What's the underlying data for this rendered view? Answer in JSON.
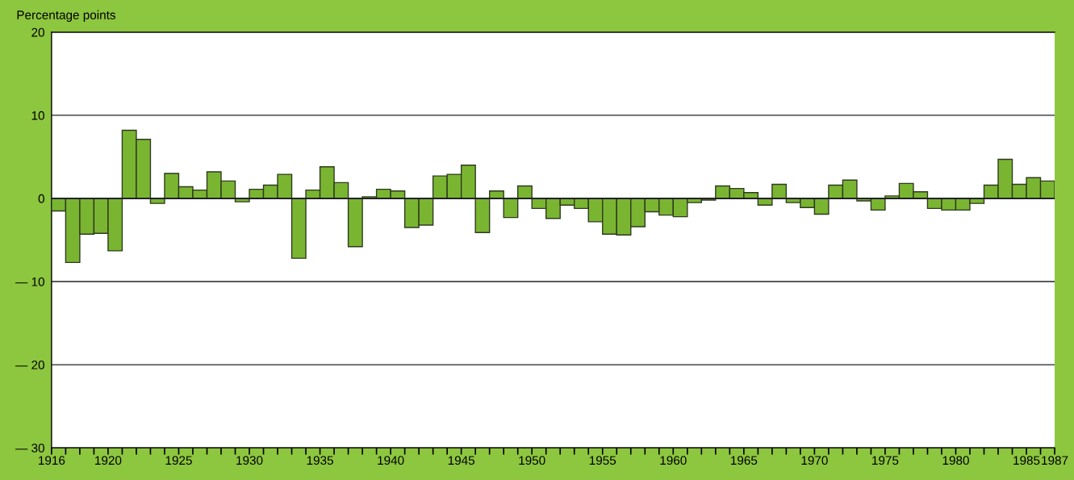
{
  "chart_data": {
    "type": "bar",
    "ylabel": "Percentage points",
    "x": [
      1916.5,
      1917.5,
      1918.5,
      1919.5,
      1920.5,
      1921.5,
      1922.5,
      1923.5,
      1924.5,
      1925.5,
      1926.5,
      1927.5,
      1928.5,
      1929.5,
      1930.5,
      1931.5,
      1932.5,
      1933.5,
      1934.5,
      1935.5,
      1936.5,
      1937.5,
      1938.5,
      1939.5,
      1940.5,
      1941.5,
      1942.5,
      1943.5,
      1944.5,
      1945.5,
      1946.5,
      1947.5,
      1948.5,
      1949.5,
      1950.5,
      1951.5,
      1952.5,
      1953.5,
      1954.5,
      1955.5,
      1956.5,
      1957.5,
      1958.5,
      1959.5,
      1960.5,
      1961.5,
      1962.5,
      1963.5,
      1964.5,
      1965.5,
      1966.5,
      1967.5,
      1968.5,
      1969.5,
      1970.5,
      1971.5,
      1972.5,
      1973.5,
      1974.5,
      1975.5,
      1976.5,
      1977.5,
      1978.5,
      1979.5,
      1980.5,
      1981.5,
      1982.5,
      1983.5,
      1984.5,
      1985.5,
      1986.5
    ],
    "values": [
      -1.5,
      -7.7,
      -4.3,
      -4.2,
      -6.3,
      8.2,
      7.1,
      -0.6,
      3.0,
      1.4,
      1.0,
      3.2,
      2.1,
      -0.4,
      1.1,
      1.6,
      2.9,
      -7.2,
      1.0,
      3.8,
      1.9,
      -5.8,
      0.2,
      1.1,
      0.9,
      -3.5,
      -3.2,
      2.7,
      2.9,
      4.0,
      -4.1,
      0.9,
      -2.3,
      1.5,
      -1.2,
      -2.4,
      -0.8,
      -1.2,
      -2.8,
      -4.3,
      -4.4,
      -3.4,
      -1.6,
      -2.0,
      -2.2,
      -0.5,
      -0.2,
      1.5,
      1.2,
      0.7,
      -0.8,
      1.7,
      -0.5,
      -1.1,
      -1.9,
      1.6,
      2.2,
      -0.3,
      -1.4,
      0.3,
      1.8,
      0.8,
      -1.2,
      -1.4,
      -1.4,
      -0.6,
      1.6,
      4.7,
      1.7,
      2.5,
      2.1
    ],
    "color": "#7ab532",
    "xlim": [
      1916,
      1987
    ],
    "xticks": [
      1916,
      {
        "value": 1917,
        "label": null
      },
      {
        "value": 1918,
        "label": null
      },
      {
        "value": 1919,
        "label": null
      },
      1920,
      {
        "value": 1921,
        "label": null
      },
      {
        "value": 1922,
        "label": null
      },
      {
        "value": 1923,
        "label": null
      },
      {
        "value": 1924,
        "label": null
      },
      1925,
      {
        "value": 1926,
        "label": null
      },
      {
        "value": 1927,
        "label": null
      },
      {
        "value": 1928,
        "label": null
      },
      {
        "value": 1929,
        "label": null
      },
      1930,
      {
        "value": 1931,
        "label": null
      },
      {
        "value": 1932,
        "label": null
      },
      {
        "value": 1933,
        "label": null
      },
      {
        "value": 1934,
        "label": null
      },
      1935,
      {
        "value": 1936,
        "label": null
      },
      {
        "value": 1937,
        "label": null
      },
      {
        "value": 1938,
        "label": null
      },
      {
        "value": 1939,
        "label": null
      },
      1940,
      {
        "value": 1941,
        "label": null
      },
      {
        "value": 1942,
        "label": null
      },
      {
        "value": 1943,
        "label": null
      },
      {
        "value": 1944,
        "label": null
      },
      1945,
      {
        "value": 1946,
        "label": null
      },
      {
        "value": 1947,
        "label": null
      },
      {
        "value": 1948,
        "label": null
      },
      {
        "value": 1949,
        "label": null
      },
      1950,
      {
        "value": 1951,
        "label": null
      },
      {
        "value": 1952,
        "label": null
      },
      {
        "value": 1953,
        "label": null
      },
      {
        "value": 1954,
        "label": null
      },
      1955,
      {
        "value": 1956,
        "label": null
      },
      {
        "value": 1957,
        "label": null
      },
      {
        "value": 1958,
        "label": null
      },
      {
        "value": 1959,
        "label": null
      },
      1960,
      {
        "value": 1961,
        "label": null
      },
      {
        "value": 1962,
        "label": null
      },
      {
        "value": 1963,
        "label": null
      },
      {
        "value": 1964,
        "label": null
      },
      1965,
      {
        "value": 1966,
        "label": null
      },
      {
        "value": 1967,
        "label": null
      },
      {
        "value": 1968,
        "label": null
      },
      {
        "value": 1969,
        "label": null
      },
      1970,
      {
        "value": 1971,
        "label": null
      },
      {
        "value": 1972,
        "label": null
      },
      {
        "value": 1973,
        "label": null
      },
      {
        "value": 1974,
        "label": null
      },
      1975,
      {
        "value": 1976,
        "label": null
      },
      {
        "value": 1977,
        "label": null
      },
      {
        "value": 1978,
        "label": null
      },
      {
        "value": 1979,
        "label": null
      },
      1980,
      {
        "value": 1981,
        "label": null
      },
      {
        "value": 1982,
        "label": null
      },
      {
        "value": 1983,
        "label": null
      },
      {
        "value": 1984,
        "label": null
      },
      1985,
      {
        "value": 1986,
        "label": null
      },
      1987
    ],
    "ylim": [
      -30,
      20
    ],
    "yticks": [
      20,
      10,
      0,
      {
        "value": -10,
        "label": "— 10"
      },
      {
        "value": -20,
        "label": "— 20"
      },
      {
        "value": -30,
        "label": "— 30"
      }
    ],
    "grid": "y"
  }
}
